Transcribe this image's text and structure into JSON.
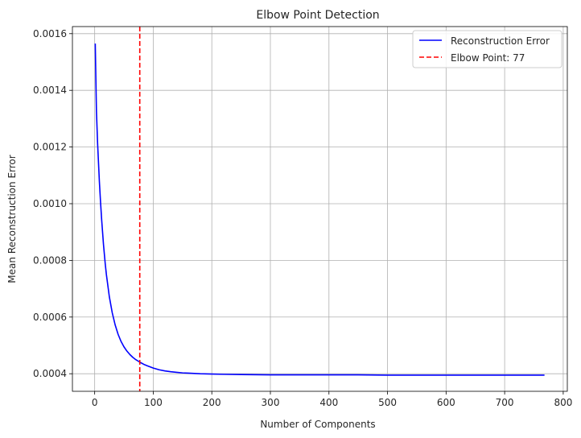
{
  "chart_data": {
    "type": "line",
    "title": "Elbow Point Detection",
    "xlabel": "Number of Components",
    "ylabel": "Mean Reconstruction Error",
    "xlim": [
      -38,
      807
    ],
    "ylim": [
      0.000338,
      0.001625
    ],
    "xticks": [
      0,
      100,
      200,
      300,
      400,
      500,
      600,
      700,
      800
    ],
    "yticks": [
      0.0004,
      0.0006,
      0.0008,
      0.001,
      0.0012,
      0.0014,
      0.0016
    ],
    "ytick_labels": [
      "0.0004",
      "0.0006",
      "0.0008",
      "0.0010",
      "0.0012",
      "0.0014",
      "0.0016"
    ],
    "grid": true,
    "legend_position": "top-right",
    "series": [
      {
        "name": "Reconstruction Error",
        "color": "#0000ff",
        "style": "solid",
        "x": [
          1,
          3,
          5,
          8,
          10,
          12,
          15,
          18,
          20,
          25,
          30,
          35,
          40,
          45,
          50,
          55,
          60,
          65,
          70,
          77,
          85,
          90,
          100,
          110,
          120,
          130,
          140,
          150,
          160,
          180,
          200,
          220,
          250,
          300,
          350,
          400,
          450,
          500,
          600,
          700,
          768
        ],
        "y": [
          0.001565,
          0.001327,
          0.001212,
          0.001079,
          0.001006,
          0.000941,
          0.000857,
          0.000788,
          0.00075,
          0.000672,
          0.000615,
          0.000572,
          0.000539,
          0.000514,
          0.000495,
          0.00048,
          0.000468,
          0.000458,
          0.00045,
          0.000441,
          0.000432,
          0.000428,
          0.00042,
          0.000414,
          0.00041,
          0.000407,
          0.000405,
          0.000403,
          0.000402,
          0.0004,
          0.000399,
          0.000398,
          0.000397,
          0.000396,
          0.000396,
          0.000396,
          0.000396,
          0.000395,
          0.000395,
          0.000395,
          0.000395
        ]
      },
      {
        "name": "Elbow Point: 77",
        "color": "#ff0000",
        "style": "dashed",
        "vline_x": 77
      }
    ]
  }
}
